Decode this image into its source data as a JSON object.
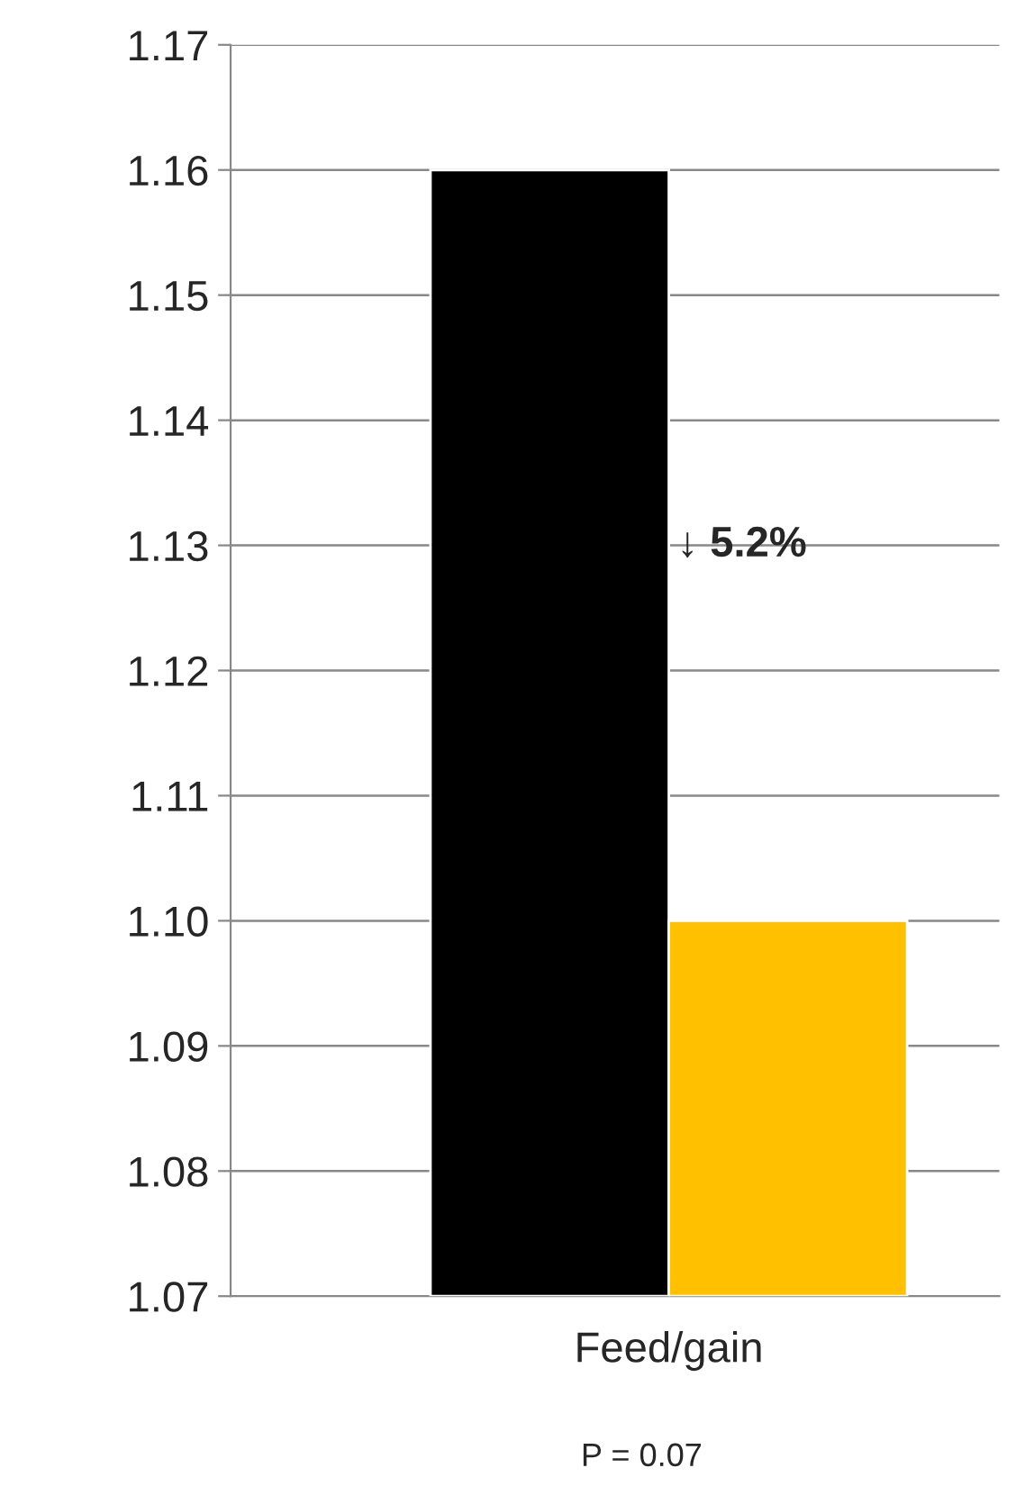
{
  "chart_data": {
    "type": "bar",
    "categories": [
      "Feed/gain"
    ],
    "series": [
      {
        "color": "#000000",
        "values": [
          1.16
        ]
      },
      {
        "color": "#ffc000",
        "values": [
          1.1
        ]
      }
    ],
    "ylim": [
      1.07,
      1.17
    ],
    "yticks": [
      1.07,
      1.08,
      1.09,
      {
        "value": 1.1,
        "label": "1.10"
      },
      1.11,
      1.12,
      1.13,
      1.14,
      1.15,
      1.16,
      1.17
    ],
    "grid": "y",
    "annotations": [
      "↓ 5.2%",
      "P = 0.07"
    ]
  }
}
